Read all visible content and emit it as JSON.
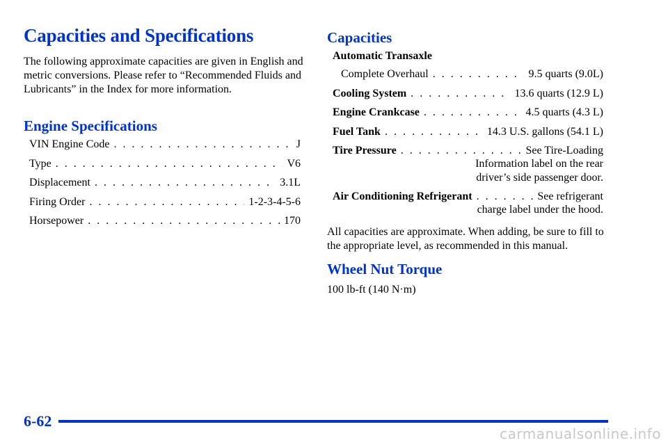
{
  "page_title": "Capacities and Specifications",
  "intro": "The following approximate capacities are given in English and metric conversions. Please refer to “Recommended Fluids and Lubricants” in the Index for more information.",
  "engine_specs": {
    "heading": "Engine Specifications",
    "items": [
      {
        "label": "VIN Engine Code",
        "value": "J"
      },
      {
        "label": "Type",
        "value": "V6"
      },
      {
        "label": "Displacement",
        "value": "3.1L"
      },
      {
        "label": "Firing Order",
        "value": "1-2-3-4-5-6"
      },
      {
        "label": "Horsepower",
        "value": "170"
      }
    ]
  },
  "capacities": {
    "heading": "Capacities",
    "automatic_transaxle": {
      "label": "Automatic Transaxle",
      "sub_label": "Complete Overhaul",
      "value": "9.5 quarts (9.0L)"
    },
    "cooling_system": {
      "label": "Cooling System",
      "value": "13.6 quarts (12.9 L)"
    },
    "engine_crankcase": {
      "label": "Engine Crankcase",
      "value": "4.5 quarts (4.3 L)"
    },
    "fuel_tank": {
      "label": "Fuel Tank",
      "value": "14.3 U.S. gallons (54.1 L)"
    },
    "tire_pressure": {
      "label": "Tire Pressure",
      "value": "See Tire-Loading",
      "line2": "Information label on the rear",
      "line3": "driver’s side passenger door."
    },
    "ac_refrigerant": {
      "label": "Air Conditioning Refrigerant",
      "value": "See refrigerant",
      "line2": "charge label under the hood."
    },
    "note": "All capacities are approximate. When adding, be sure to fill to the appropriate level, as recommended in this manual."
  },
  "wheel_nut_torque": {
    "heading": "Wheel Nut Torque",
    "value": "100 lb-ft (140 N·m)"
  },
  "footer": {
    "page_number": "6-62",
    "watermark": "carmanualsonline.info"
  },
  "colors": {
    "heading_blue": "#0033cc",
    "watermark_gray": "#c8c8c8"
  }
}
